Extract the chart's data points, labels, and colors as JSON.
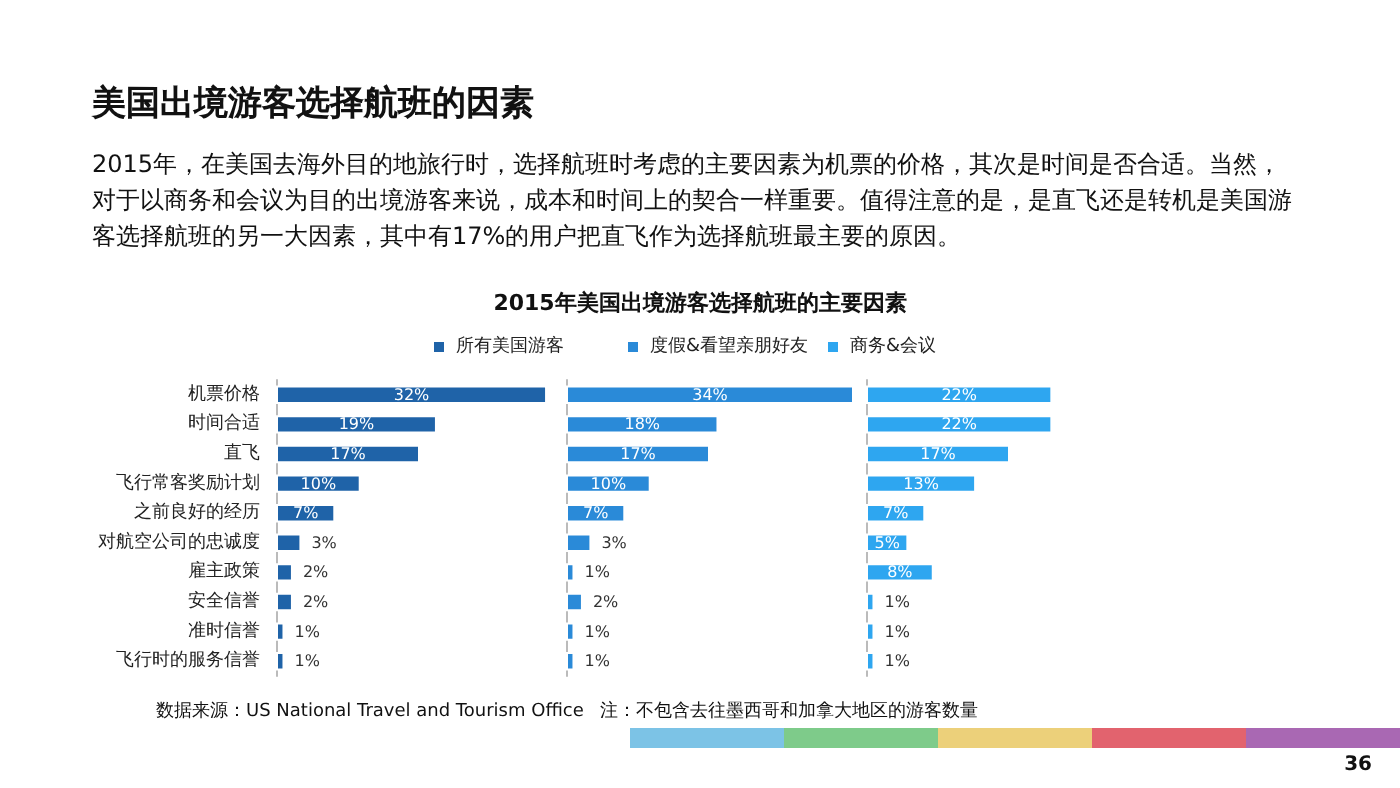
{
  "chart_data": [
    {
      "type": "bar",
      "orientation": "horizontal",
      "categories": [
        "机票价格",
        "时间合适",
        "直飞",
        "飞行常客奖励计划",
        "之前良好的经历",
        "对航空公司的忠诚度",
        "雇主政策",
        "安全信誉",
        "准时信誉",
        "飞行时的服务信誉"
      ],
      "series": [
        {
          "name": "所有美国游客",
          "color": "#1f63a8",
          "values": [
            32,
            19,
            17,
            10,
            7,
            3,
            2,
            2,
            1,
            1
          ],
          "value_labels": [
            "32%",
            "19%",
            "17%",
            "10%",
            "7%",
            "3%",
            "2%",
            "2%",
            "1%",
            "1%"
          ]
        }
      ],
      "tick_labels": "y",
      "legend": "top",
      "annotations": [
        "美国出境游客选择航班的因素",
        "2015年，在美国去海外目的地旅行时，选择航班时考虑的主要因素为机票的价格，其次是时间是否合适。当然，对于以商务和会议为目的出境游客来说，成本和时间上的契合一样重要。值得注意的是，是直飞还是转机是美国游客选择航班的另一大因素，其中有17%的用户把直飞作为选择航班最主要的原因。",
        "2015年美国出境游客选择航班的主要因素",
        "数据来源：US National Travel and Tourism Office",
        "注：不包含去往墨西哥和加拿大地区的游客数量",
        "36"
      ]
    },
    {
      "type": "bar",
      "orientation": "horizontal",
      "categories": [
        null,
        null,
        null,
        null,
        null,
        null,
        null,
        null,
        null,
        null
      ],
      "series": [
        {
          "name": "度假&看望亲朋好友",
          "color": "#2a8ad8",
          "values": [
            34,
            18,
            17,
            10,
            7,
            3,
            1,
            2,
            1,
            1
          ],
          "value_labels": [
            "34%",
            "18%",
            "17%",
            "10%",
            "7%",
            "3%",
            "1%",
            "2%",
            "1%",
            "1%"
          ]
        }
      ],
      "tick_labels": false,
      "legend": "top"
    },
    {
      "type": "bar",
      "orientation": "horizontal",
      "categories": [
        null,
        null,
        null,
        null,
        null,
        null,
        null,
        null,
        null,
        null
      ],
      "series": [
        {
          "name": "商务&会议",
          "color": "#2ea6f0",
          "values": [
            22,
            22,
            17,
            13,
            7,
            5,
            8,
            1,
            1,
            1
          ],
          "value_labels": [
            "22%",
            "22%",
            "17%",
            "13%",
            "7%",
            "5%",
            "8%",
            "1%",
            "1%",
            "1%"
          ]
        }
      ],
      "tick_labels": false,
      "legend": "top"
    }
  ]
}
